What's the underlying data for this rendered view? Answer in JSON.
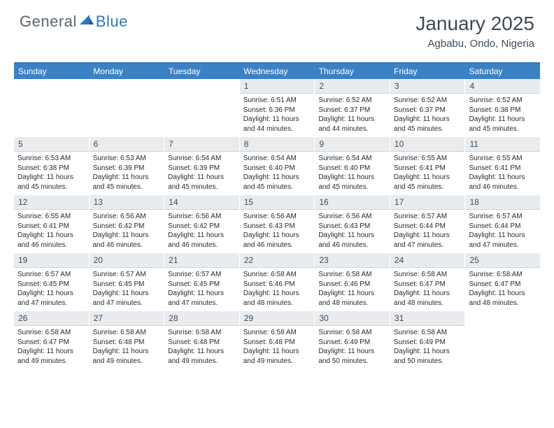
{
  "logo": {
    "general": "General",
    "blue": "Blue"
  },
  "title": "January 2025",
  "location": "Agbabu, Ondo, Nigeria",
  "colors": {
    "header_bar": "#3b82c4",
    "header_border": "#2f7cc0",
    "daynum_bg": "#e9ecef",
    "text_dark": "#3e4a57",
    "logo_gray": "#5a6470",
    "logo_blue": "#2b79c2"
  },
  "weekdays": [
    "Sunday",
    "Monday",
    "Tuesday",
    "Wednesday",
    "Thursday",
    "Friday",
    "Saturday"
  ],
  "weeks": [
    [
      null,
      null,
      null,
      {
        "n": "1",
        "sr": "6:51 AM",
        "ss": "6:36 PM",
        "dl": "11 hours and 44 minutes."
      },
      {
        "n": "2",
        "sr": "6:52 AM",
        "ss": "6:37 PM",
        "dl": "11 hours and 44 minutes."
      },
      {
        "n": "3",
        "sr": "6:52 AM",
        "ss": "6:37 PM",
        "dl": "11 hours and 45 minutes."
      },
      {
        "n": "4",
        "sr": "6:52 AM",
        "ss": "6:38 PM",
        "dl": "11 hours and 45 minutes."
      }
    ],
    [
      {
        "n": "5",
        "sr": "6:53 AM",
        "ss": "6:38 PM",
        "dl": "11 hours and 45 minutes."
      },
      {
        "n": "6",
        "sr": "6:53 AM",
        "ss": "6:39 PM",
        "dl": "11 hours and 45 minutes."
      },
      {
        "n": "7",
        "sr": "6:54 AM",
        "ss": "6:39 PM",
        "dl": "11 hours and 45 minutes."
      },
      {
        "n": "8",
        "sr": "6:54 AM",
        "ss": "6:40 PM",
        "dl": "11 hours and 45 minutes."
      },
      {
        "n": "9",
        "sr": "6:54 AM",
        "ss": "6:40 PM",
        "dl": "11 hours and 45 minutes."
      },
      {
        "n": "10",
        "sr": "6:55 AM",
        "ss": "6:41 PM",
        "dl": "11 hours and 45 minutes."
      },
      {
        "n": "11",
        "sr": "6:55 AM",
        "ss": "6:41 PM",
        "dl": "11 hours and 46 minutes."
      }
    ],
    [
      {
        "n": "12",
        "sr": "6:55 AM",
        "ss": "6:41 PM",
        "dl": "11 hours and 46 minutes."
      },
      {
        "n": "13",
        "sr": "6:56 AM",
        "ss": "6:42 PM",
        "dl": "11 hours and 46 minutes."
      },
      {
        "n": "14",
        "sr": "6:56 AM",
        "ss": "6:42 PM",
        "dl": "11 hours and 46 minutes."
      },
      {
        "n": "15",
        "sr": "6:56 AM",
        "ss": "6:43 PM",
        "dl": "11 hours and 46 minutes."
      },
      {
        "n": "16",
        "sr": "6:56 AM",
        "ss": "6:43 PM",
        "dl": "11 hours and 46 minutes."
      },
      {
        "n": "17",
        "sr": "6:57 AM",
        "ss": "6:44 PM",
        "dl": "11 hours and 47 minutes."
      },
      {
        "n": "18",
        "sr": "6:57 AM",
        "ss": "6:44 PM",
        "dl": "11 hours and 47 minutes."
      }
    ],
    [
      {
        "n": "19",
        "sr": "6:57 AM",
        "ss": "6:45 PM",
        "dl": "11 hours and 47 minutes."
      },
      {
        "n": "20",
        "sr": "6:57 AM",
        "ss": "6:45 PM",
        "dl": "11 hours and 47 minutes."
      },
      {
        "n": "21",
        "sr": "6:57 AM",
        "ss": "6:45 PM",
        "dl": "11 hours and 47 minutes."
      },
      {
        "n": "22",
        "sr": "6:58 AM",
        "ss": "6:46 PM",
        "dl": "11 hours and 48 minutes."
      },
      {
        "n": "23",
        "sr": "6:58 AM",
        "ss": "6:46 PM",
        "dl": "11 hours and 48 minutes."
      },
      {
        "n": "24",
        "sr": "6:58 AM",
        "ss": "6:47 PM",
        "dl": "11 hours and 48 minutes."
      },
      {
        "n": "25",
        "sr": "6:58 AM",
        "ss": "6:47 PM",
        "dl": "11 hours and 48 minutes."
      }
    ],
    [
      {
        "n": "26",
        "sr": "6:58 AM",
        "ss": "6:47 PM",
        "dl": "11 hours and 49 minutes."
      },
      {
        "n": "27",
        "sr": "6:58 AM",
        "ss": "6:48 PM",
        "dl": "11 hours and 49 minutes."
      },
      {
        "n": "28",
        "sr": "6:58 AM",
        "ss": "6:48 PM",
        "dl": "11 hours and 49 minutes."
      },
      {
        "n": "29",
        "sr": "6:58 AM",
        "ss": "6:48 PM",
        "dl": "11 hours and 49 minutes."
      },
      {
        "n": "30",
        "sr": "6:58 AM",
        "ss": "6:49 PM",
        "dl": "11 hours and 50 minutes."
      },
      {
        "n": "31",
        "sr": "6:58 AM",
        "ss": "6:49 PM",
        "dl": "11 hours and 50 minutes."
      },
      null
    ]
  ],
  "labels": {
    "sunrise": "Sunrise:",
    "sunset": "Sunset:",
    "daylight": "Daylight:"
  }
}
